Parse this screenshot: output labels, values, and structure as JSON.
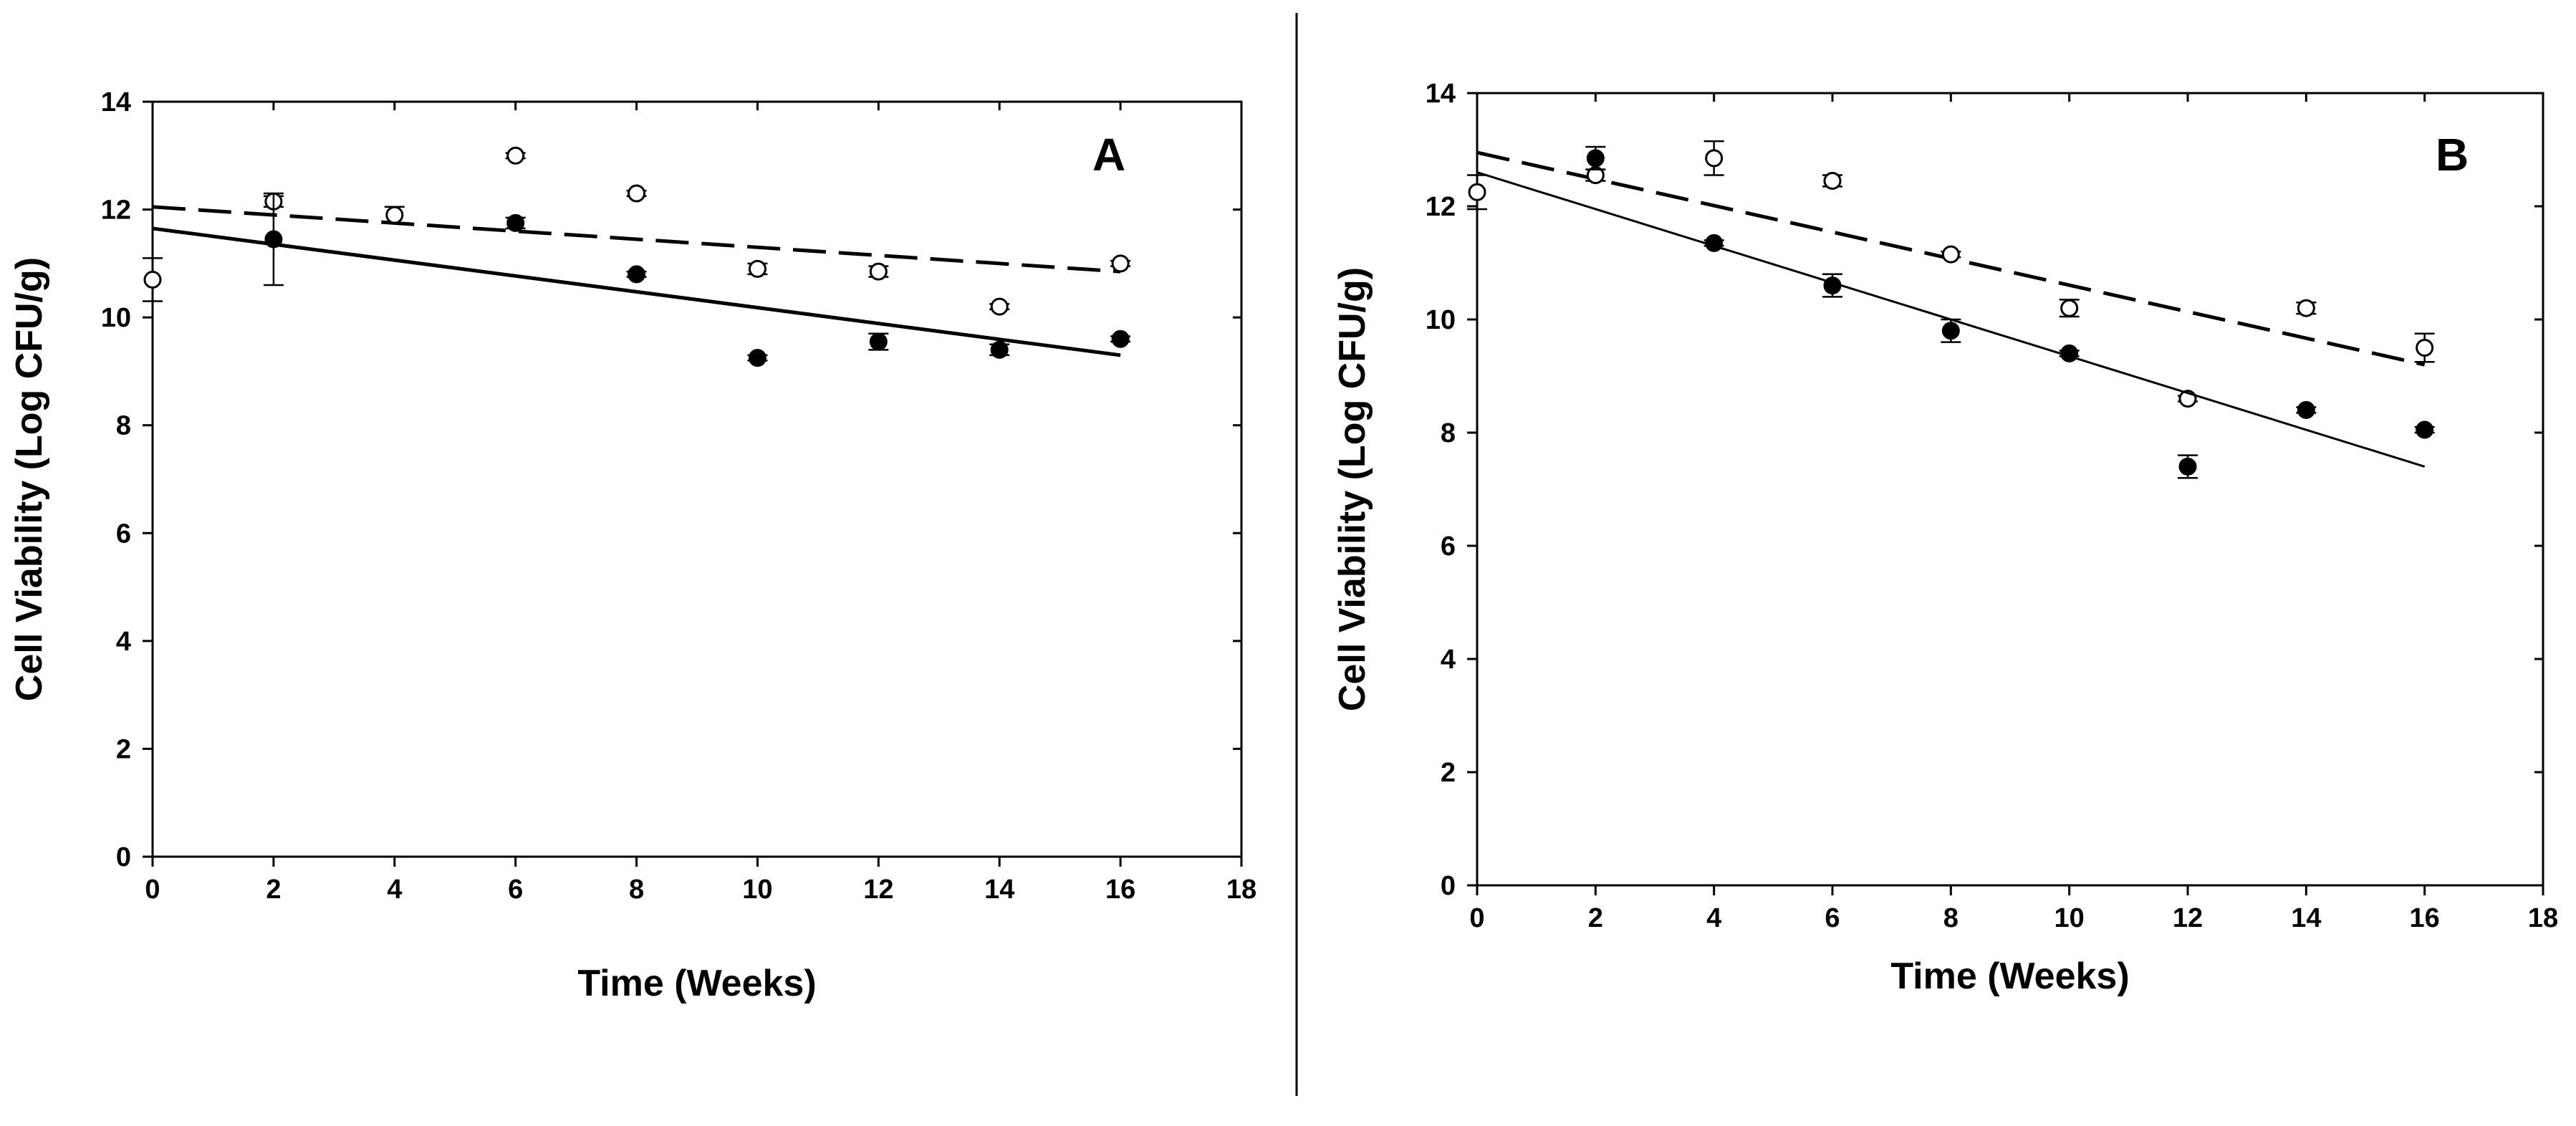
{
  "chart_data": [
    {
      "type": "scatter",
      "panel_label": "A",
      "xlabel": "Time (Weeks)",
      "ylabel": "Cell Viability (Log CFU/g)",
      "xlim": [
        0,
        18
      ],
      "ylim": [
        0,
        14
      ],
      "xticks": [
        0,
        2,
        4,
        6,
        8,
        10,
        12,
        14,
        16,
        18
      ],
      "yticks": [
        0,
        2,
        4,
        6,
        8,
        10,
        12,
        14
      ],
      "series": [
        {
          "name": "open",
          "marker": "open-circle",
          "x": [
            0,
            2,
            4,
            6,
            8,
            10,
            12,
            14,
            16
          ],
          "y": [
            10.7,
            12.15,
            11.9,
            13.0,
            12.3,
            10.9,
            10.85,
            10.2,
            11.0
          ],
          "err": [
            0.4,
            0.1,
            0.15,
            0.05,
            0.05,
            0.1,
            0.1,
            0.05,
            0.05
          ],
          "fit": {
            "style": "dashed",
            "x": [
              0,
              16
            ],
            "y": [
              12.05,
              10.85
            ]
          }
        },
        {
          "name": "filled",
          "marker": "filled-circle",
          "x": [
            2,
            6,
            8,
            10,
            12,
            14,
            16
          ],
          "y": [
            11.45,
            11.75,
            10.8,
            9.25,
            9.55,
            9.4,
            9.6
          ],
          "err": [
            0.85,
            0.1,
            0.05,
            0.05,
            0.15,
            0.1,
            0.05
          ],
          "fit": {
            "style": "solid",
            "x": [
              0,
              16
            ],
            "y": [
              11.65,
              9.3
            ]
          }
        }
      ]
    },
    {
      "type": "scatter",
      "panel_label": "B",
      "xlabel": "Time (Weeks)",
      "ylabel": "Cell Viability (Log CFU/g)",
      "xlim": [
        0,
        18
      ],
      "ylim": [
        0,
        14
      ],
      "xticks": [
        0,
        2,
        4,
        6,
        8,
        10,
        12,
        14,
        16,
        18
      ],
      "yticks": [
        0,
        2,
        4,
        6,
        8,
        10,
        12,
        14
      ],
      "series": [
        {
          "name": "open",
          "marker": "open-circle",
          "x": [
            0,
            2,
            4,
            6,
            8,
            10,
            12,
            14,
            16
          ],
          "y": [
            12.25,
            12.55,
            12.85,
            12.45,
            11.15,
            10.2,
            8.6,
            10.2,
            9.5
          ],
          "err": [
            0.3,
            0.1,
            0.3,
            0.1,
            0.05,
            0.15,
            0.05,
            0.1,
            0.25
          ],
          "fit": {
            "style": "dashed",
            "x": [
              0,
              16
            ],
            "y": [
              12.95,
              9.2
            ]
          }
        },
        {
          "name": "filled",
          "marker": "filled-circle",
          "x": [
            2,
            4,
            6,
            8,
            10,
            12,
            14,
            16
          ],
          "y": [
            12.85,
            11.35,
            10.6,
            9.8,
            9.4,
            7.4,
            8.4,
            8.05
          ],
          "err": [
            0.2,
            0.05,
            0.2,
            0.2,
            0.05,
            0.2,
            0.05,
            0.05
          ],
          "fit": {
            "style": "solid",
            "x": [
              0,
              16
            ],
            "y": [
              12.6,
              7.4
            ]
          }
        }
      ]
    }
  ]
}
